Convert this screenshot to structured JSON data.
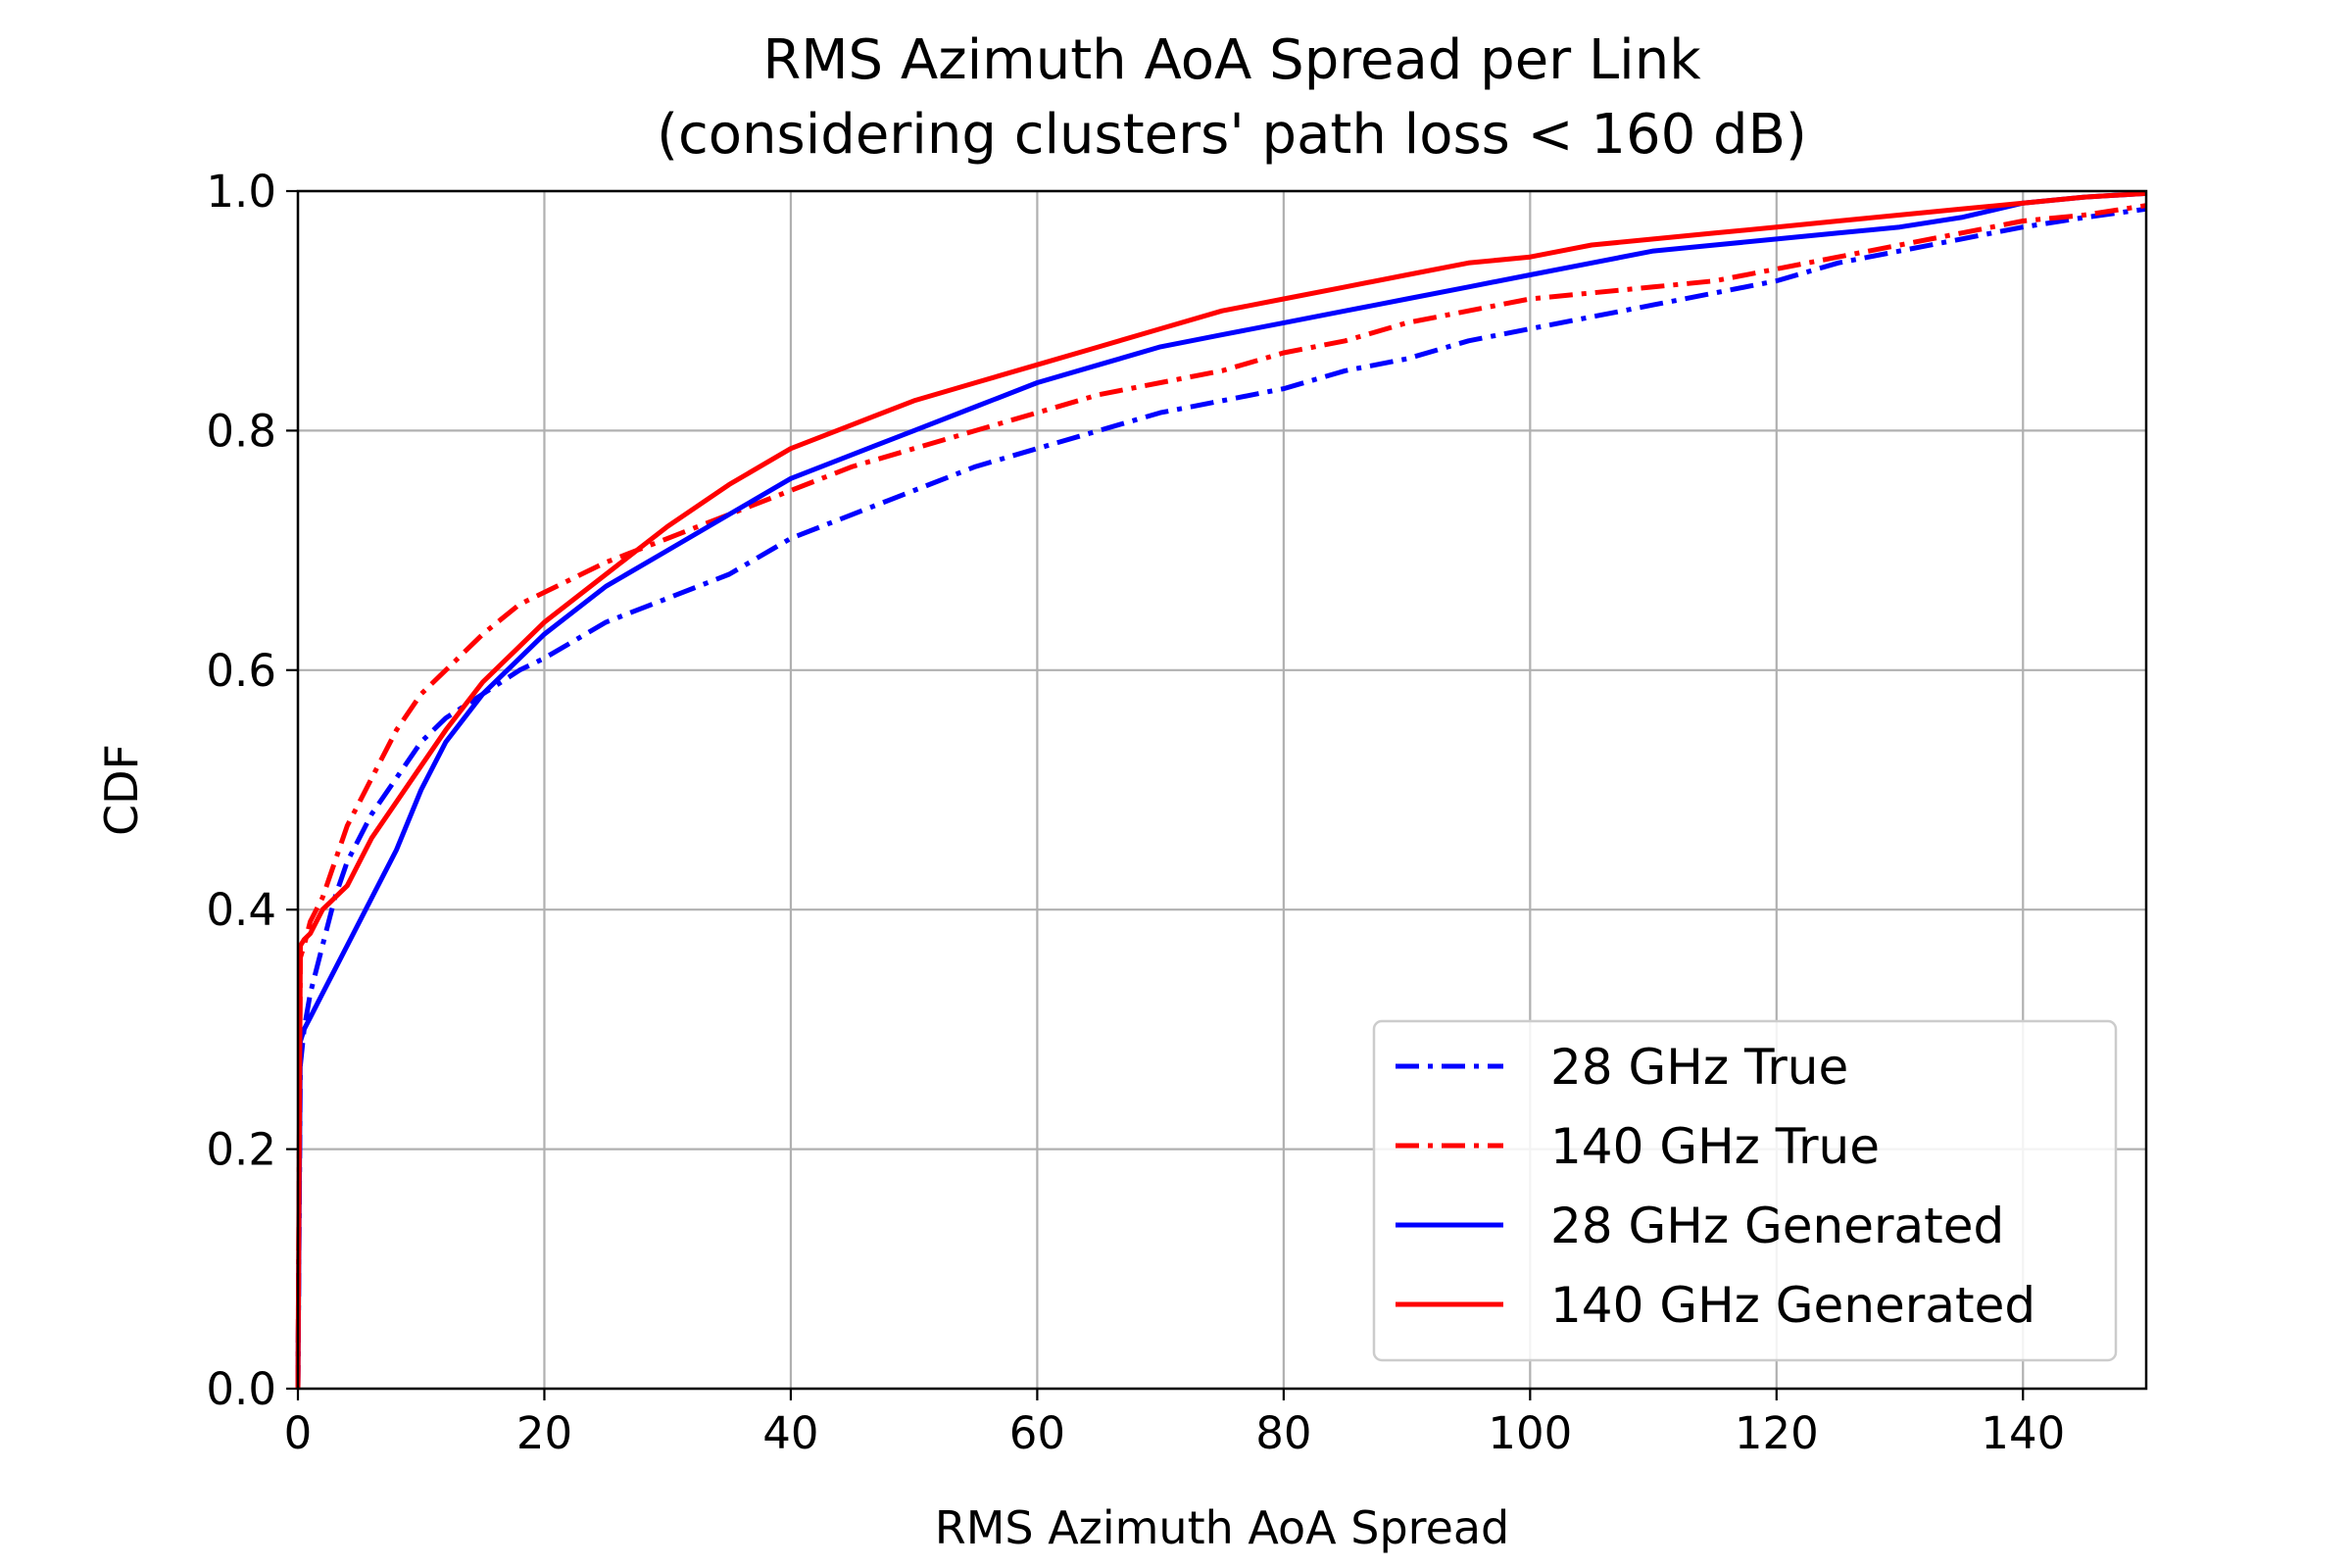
{
  "chart_data": {
    "type": "line",
    "title": "RMS Azimuth AoA Spread per Link",
    "subtitle": "(considering clusters' path loss < 160 dB)",
    "xlabel": "RMS Azimuth AoA Spread",
    "ylabel": "CDF",
    "xlim": [
      0,
      150
    ],
    "ylim": [
      0,
      1
    ],
    "xticks": [
      "0",
      "20",
      "40",
      "60",
      "80",
      "100",
      "120",
      "140"
    ],
    "yticks": [
      "0.0",
      "0.2",
      "0.4",
      "0.6",
      "0.8",
      "1.0"
    ],
    "grid": true,
    "legend_position": "bottom-right",
    "series": [
      {
        "name": "28 GHz True",
        "color": "#0000ff",
        "style": "dashdot",
        "points": [
          [
            0,
            0
          ],
          [
            0.2,
            0.27
          ],
          [
            0.5,
            0.3
          ],
          [
            1,
            0.33
          ],
          [
            2,
            0.37
          ],
          [
            3,
            0.41
          ],
          [
            4,
            0.44
          ],
          [
            6,
            0.48
          ],
          [
            8,
            0.51
          ],
          [
            10,
            0.54
          ],
          [
            12,
            0.56
          ],
          [
            15,
            0.58
          ],
          [
            18,
            0.6
          ],
          [
            20,
            0.61
          ],
          [
            25,
            0.64
          ],
          [
            30,
            0.66
          ],
          [
            35,
            0.68
          ],
          [
            40,
            0.71
          ],
          [
            45,
            0.73
          ],
          [
            50,
            0.75
          ],
          [
            55,
            0.77
          ],
          [
            60,
            0.785
          ],
          [
            65,
            0.8
          ],
          [
            70,
            0.815
          ],
          [
            75,
            0.825
          ],
          [
            80,
            0.835
          ],
          [
            85,
            0.85
          ],
          [
            90,
            0.86
          ],
          [
            95,
            0.875
          ],
          [
            100,
            0.885
          ],
          [
            105,
            0.895
          ],
          [
            110,
            0.905
          ],
          [
            115,
            0.915
          ],
          [
            120,
            0.925
          ],
          [
            125,
            0.94
          ],
          [
            130,
            0.95
          ],
          [
            135,
            0.96
          ],
          [
            140,
            0.97
          ],
          [
            145,
            0.978
          ],
          [
            150,
            0.985
          ]
        ]
      },
      {
        "name": "140 GHz True",
        "color": "#ff0000",
        "style": "dashdot",
        "points": [
          [
            0,
            0
          ],
          [
            0.2,
            0.36
          ],
          [
            0.5,
            0.37
          ],
          [
            1,
            0.39
          ],
          [
            2,
            0.41
          ],
          [
            3,
            0.44
          ],
          [
            4,
            0.47
          ],
          [
            6,
            0.51
          ],
          [
            8,
            0.55
          ],
          [
            10,
            0.58
          ],
          [
            12,
            0.6
          ],
          [
            15,
            0.63
          ],
          [
            18,
            0.655
          ],
          [
            20,
            0.665
          ],
          [
            25,
            0.69
          ],
          [
            30,
            0.71
          ],
          [
            35,
            0.73
          ],
          [
            40,
            0.75
          ],
          [
            45,
            0.77
          ],
          [
            50,
            0.785
          ],
          [
            55,
            0.8
          ],
          [
            60,
            0.815
          ],
          [
            65,
            0.83
          ],
          [
            70,
            0.84
          ],
          [
            75,
            0.85
          ],
          [
            80,
            0.865
          ],
          [
            85,
            0.875
          ],
          [
            90,
            0.89
          ],
          [
            95,
            0.9
          ],
          [
            100,
            0.91
          ],
          [
            105,
            0.915
          ],
          [
            110,
            0.92
          ],
          [
            115,
            0.925
          ],
          [
            120,
            0.935
          ],
          [
            125,
            0.945
          ],
          [
            130,
            0.955
          ],
          [
            135,
            0.965
          ],
          [
            140,
            0.975
          ],
          [
            145,
            0.98
          ],
          [
            150,
            0.988
          ]
        ]
      },
      {
        "name": "28 GHz Generated",
        "color": "#0000ff",
        "style": "solid",
        "points": [
          [
            0,
            0
          ],
          [
            0.2,
            0.29
          ],
          [
            0.5,
            0.3
          ],
          [
            1,
            0.31
          ],
          [
            2,
            0.33
          ],
          [
            3,
            0.35
          ],
          [
            4,
            0.37
          ],
          [
            6,
            0.41
          ],
          [
            8,
            0.45
          ],
          [
            10,
            0.5
          ],
          [
            12,
            0.54
          ],
          [
            15,
            0.58
          ],
          [
            18,
            0.61
          ],
          [
            20,
            0.63
          ],
          [
            25,
            0.67
          ],
          [
            30,
            0.7
          ],
          [
            35,
            0.73
          ],
          [
            40,
            0.76
          ],
          [
            45,
            0.78
          ],
          [
            50,
            0.8
          ],
          [
            55,
            0.82
          ],
          [
            60,
            0.84
          ],
          [
            65,
            0.855
          ],
          [
            70,
            0.87
          ],
          [
            75,
            0.88
          ],
          [
            80,
            0.89
          ],
          [
            85,
            0.9
          ],
          [
            90,
            0.91
          ],
          [
            95,
            0.92
          ],
          [
            100,
            0.93
          ],
          [
            105,
            0.94
          ],
          [
            110,
            0.95
          ],
          [
            115,
            0.955
          ],
          [
            120,
            0.96
          ],
          [
            125,
            0.965
          ],
          [
            130,
            0.97
          ],
          [
            135,
            0.978
          ],
          [
            140,
            0.99
          ],
          [
            145,
            0.995
          ],
          [
            150,
            0.998
          ]
        ]
      },
      {
        "name": "140 GHz Generated",
        "color": "#ff0000",
        "style": "solid",
        "points": [
          [
            0,
            0
          ],
          [
            0.2,
            0.37
          ],
          [
            0.5,
            0.375
          ],
          [
            1,
            0.38
          ],
          [
            2,
            0.4
          ],
          [
            3,
            0.41
          ],
          [
            4,
            0.42
          ],
          [
            6,
            0.46
          ],
          [
            8,
            0.49
          ],
          [
            10,
            0.52
          ],
          [
            12,
            0.55
          ],
          [
            15,
            0.59
          ],
          [
            18,
            0.62
          ],
          [
            20,
            0.64
          ],
          [
            25,
            0.68
          ],
          [
            30,
            0.72
          ],
          [
            35,
            0.755
          ],
          [
            40,
            0.785
          ],
          [
            45,
            0.805
          ],
          [
            50,
            0.825
          ],
          [
            55,
            0.84
          ],
          [
            60,
            0.855
          ],
          [
            65,
            0.87
          ],
          [
            70,
            0.885
          ],
          [
            75,
            0.9
          ],
          [
            80,
            0.91
          ],
          [
            85,
            0.92
          ],
          [
            90,
            0.93
          ],
          [
            95,
            0.94
          ],
          [
            100,
            0.945
          ],
          [
            105,
            0.955
          ],
          [
            110,
            0.96
          ],
          [
            115,
            0.965
          ],
          [
            120,
            0.97
          ],
          [
            125,
            0.975
          ],
          [
            130,
            0.98
          ],
          [
            135,
            0.985
          ],
          [
            140,
            0.99
          ],
          [
            145,
            0.995
          ],
          [
            150,
            0.998
          ]
        ]
      }
    ]
  }
}
